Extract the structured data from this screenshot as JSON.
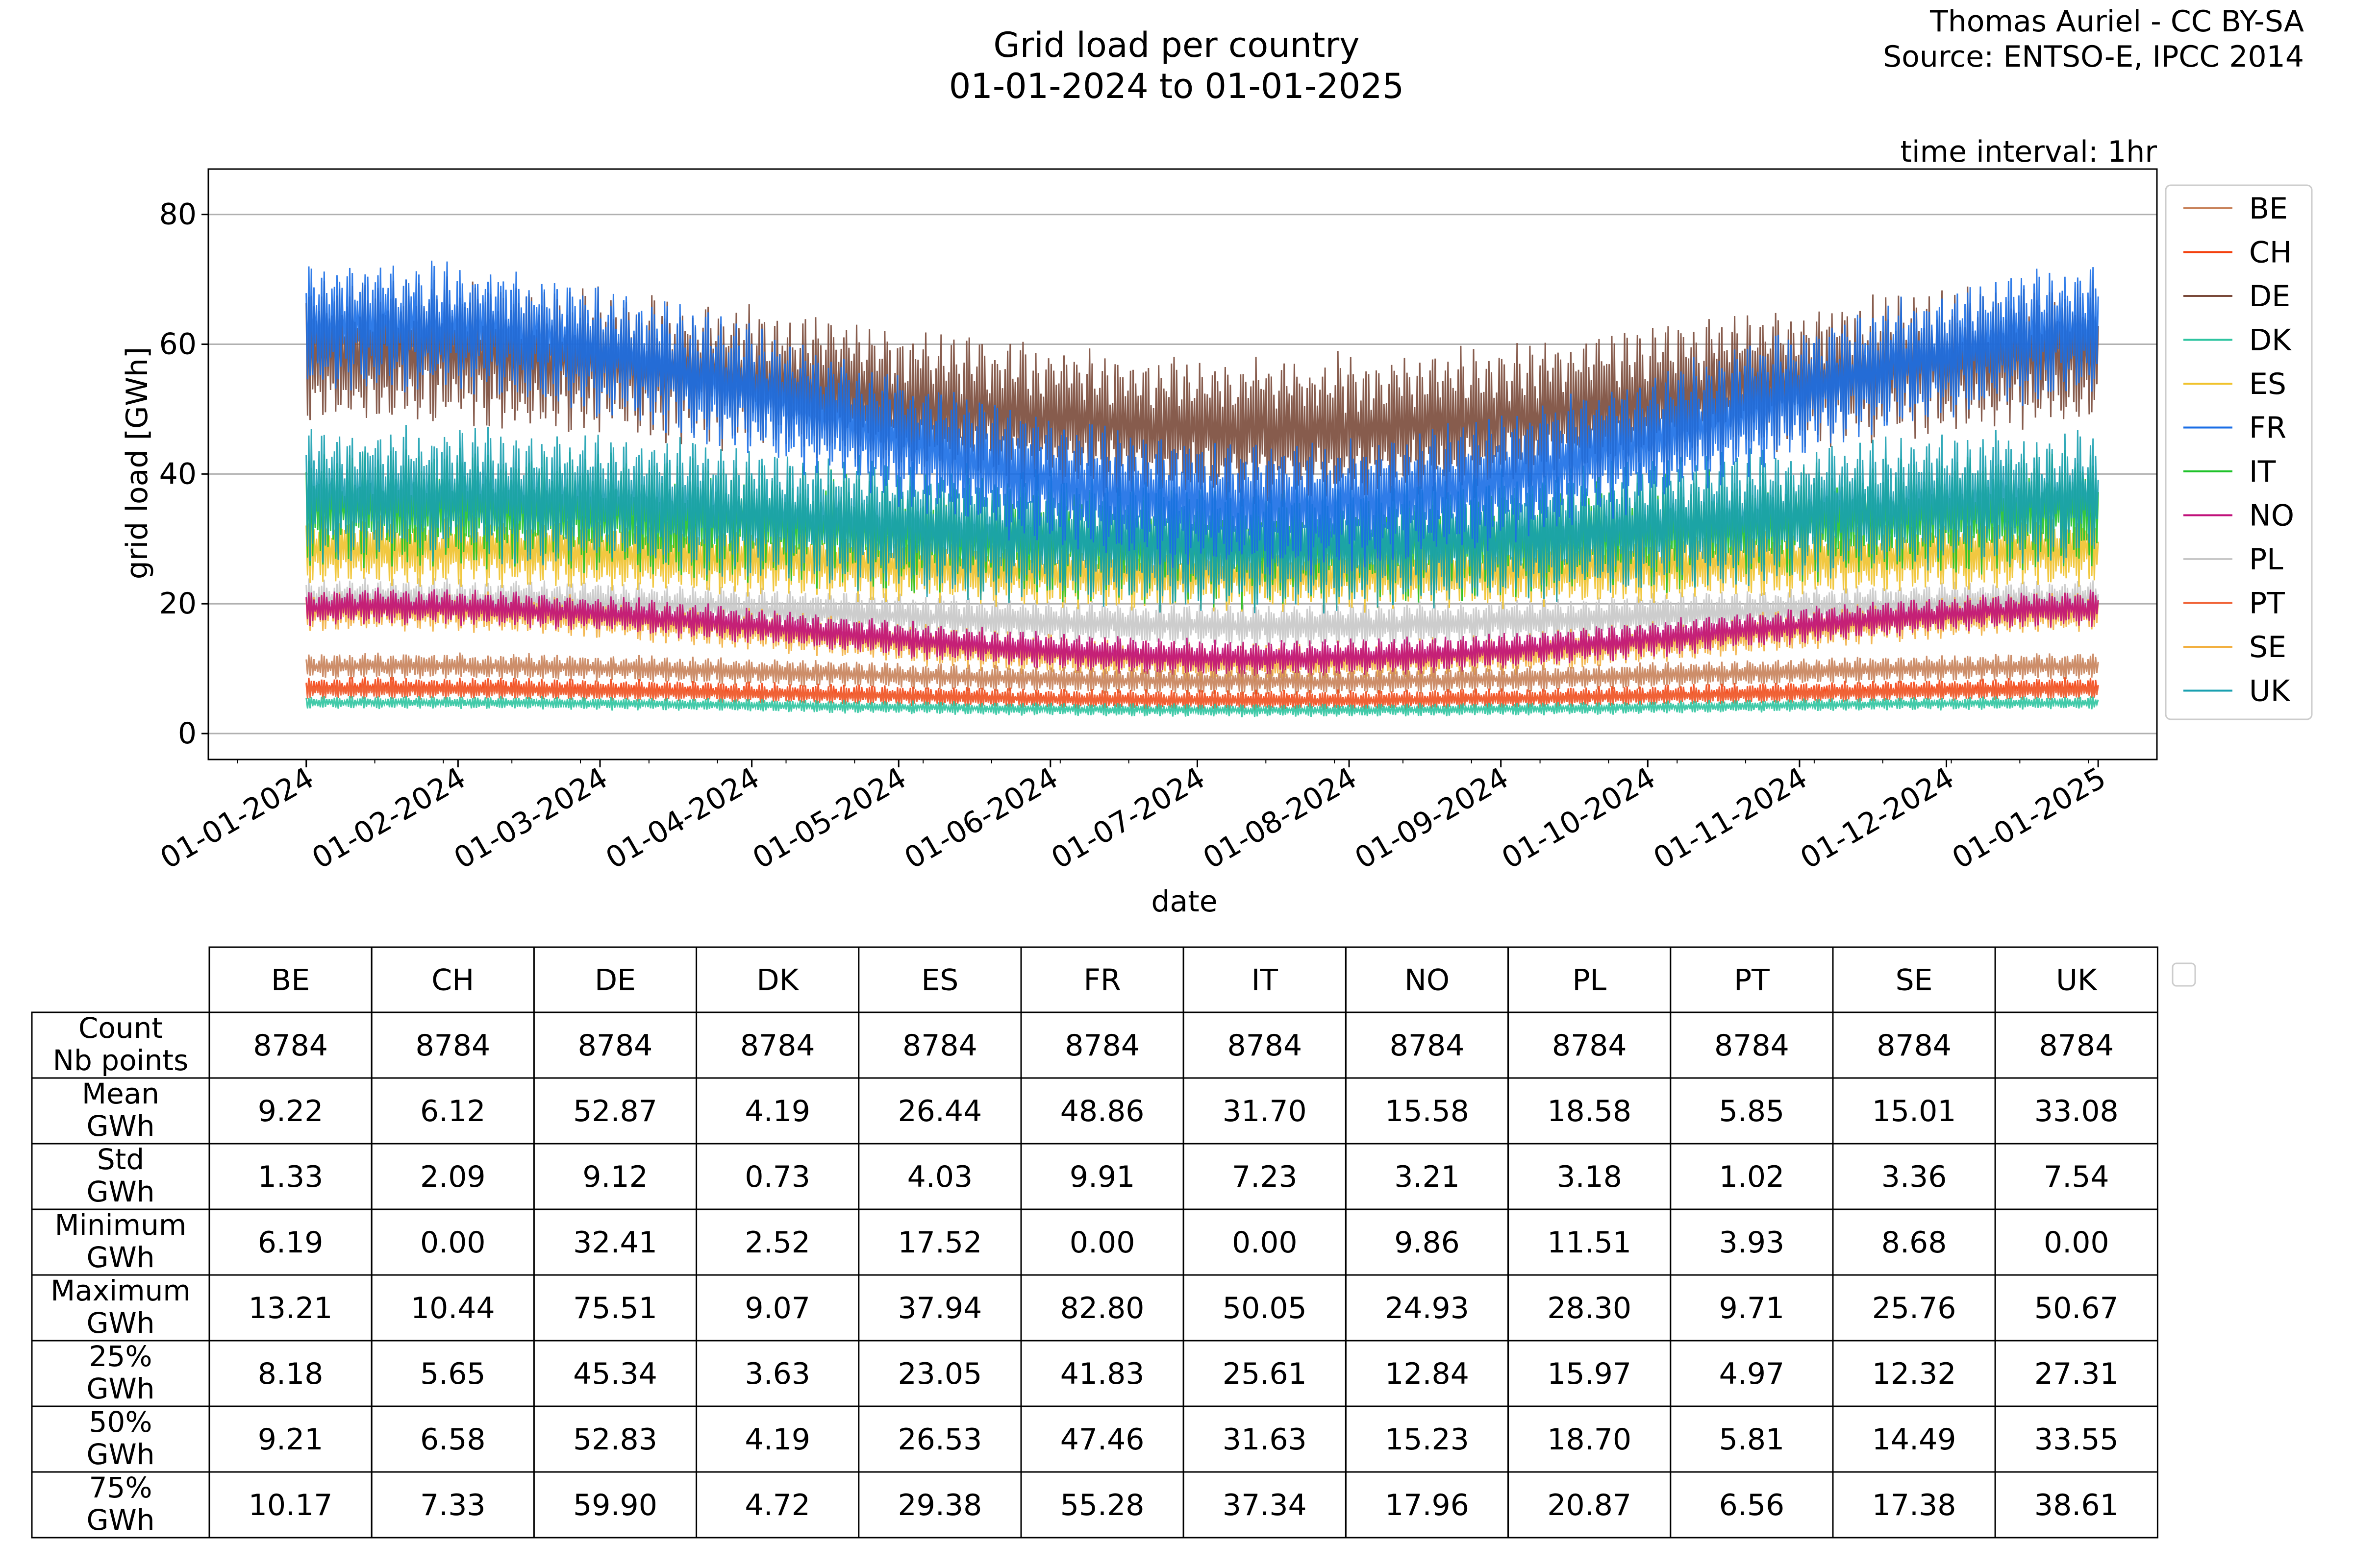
{
  "credit": {
    "author": "Thomas Auriel - CC BY-SA",
    "source": "Source: ENTSO-E, IPCC 2014"
  },
  "chart_data": {
    "type": "line",
    "title": "Grid load per country",
    "subtitle": "01-01-2024 to 01-01-2025",
    "annotation": "time interval: 1hr",
    "xlabel": "date",
    "ylabel": "grid load [GWh]",
    "ylim": [
      -4,
      87
    ],
    "yticks": [
      0,
      20,
      40,
      60,
      80
    ],
    "xlim": [
      "2023-12-12",
      "2025-01-13"
    ],
    "xticks": [
      "01-01-2024",
      "01-02-2024",
      "01-03-2024",
      "01-04-2024",
      "01-05-2024",
      "01-06-2024",
      "01-07-2024",
      "01-08-2024",
      "01-09-2024",
      "01-10-2024",
      "01-11-2024",
      "01-12-2024",
      "01-01-2025"
    ],
    "grid": "horizontal",
    "legend": "right",
    "series": [
      {
        "name": "BE",
        "color": "#c8825a",
        "mean": 9.22,
        "amp": 1.8,
        "seasonal": 1.2,
        "p25": 8.18,
        "p75": 10.17
      },
      {
        "name": "CH",
        "color": "#f4400e",
        "mean": 6.12,
        "amp": 1.4,
        "seasonal": 1.0,
        "p25": 5.65,
        "p75": 7.33
      },
      {
        "name": "DE",
        "color": "#7a4a3a",
        "mean": 52.87,
        "amp": 10.0,
        "seasonal": 6.0,
        "p25": 45.34,
        "p75": 59.9
      },
      {
        "name": "DK",
        "color": "#2ec4a0",
        "mean": 4.19,
        "amp": 0.9,
        "seasonal": 0.6,
        "p25": 3.63,
        "p75": 4.72
      },
      {
        "name": "ES",
        "color": "#f0c22c",
        "mean": 26.44,
        "amp": 5.0,
        "seasonal": 2.0,
        "p25": 23.05,
        "p75": 29.38
      },
      {
        "name": "FR",
        "color": "#1a6ee6",
        "mean": 48.86,
        "amp": 9.0,
        "seasonal": 14.0,
        "p25": 41.83,
        "p75": 55.28
      },
      {
        "name": "IT",
        "color": "#1fc22a",
        "mean": 31.7,
        "amp": 8.0,
        "seasonal": 3.0,
        "p25": 25.61,
        "p75": 37.34
      },
      {
        "name": "NO",
        "color": "#c0107a",
        "mean": 15.58,
        "amp": 2.5,
        "seasonal": 4.0,
        "p25": 12.84,
        "p75": 17.96
      },
      {
        "name": "PL",
        "color": "#c8c8c8",
        "mean": 18.58,
        "amp": 3.0,
        "seasonal": 2.0,
        "p25": 15.97,
        "p75": 20.87
      },
      {
        "name": "PT",
        "color": "#f06438",
        "mean": 5.85,
        "amp": 1.2,
        "seasonal": 0.8,
        "p25": 4.97,
        "p75": 6.56
      },
      {
        "name": "SE",
        "color": "#f2b040",
        "mean": 15.01,
        "amp": 2.8,
        "seasonal": 4.0,
        "p25": 12.32,
        "p75": 17.38
      },
      {
        "name": "UK",
        "color": "#1aa0b0",
        "mean": 33.08,
        "amp": 9.0,
        "seasonal": 4.0,
        "p25": 27.31,
        "p75": 38.61
      }
    ],
    "table": {
      "columns": [
        "BE",
        "CH",
        "DE",
        "DK",
        "ES",
        "FR",
        "IT",
        "NO",
        "PL",
        "PT",
        "SE",
        "UK"
      ],
      "rows": [
        {
          "label": [
            "Count",
            "Nb points"
          ],
          "values": [
            "8784",
            "8784",
            "8784",
            "8784",
            "8784",
            "8784",
            "8784",
            "8784",
            "8784",
            "8784",
            "8784",
            "8784"
          ]
        },
        {
          "label": [
            "Mean",
            "GWh"
          ],
          "values": [
            "9.22",
            "6.12",
            "52.87",
            "4.19",
            "26.44",
            "48.86",
            "31.70",
            "15.58",
            "18.58",
            "5.85",
            "15.01",
            "33.08"
          ]
        },
        {
          "label": [
            "Std",
            "GWh"
          ],
          "values": [
            "1.33",
            "2.09",
            "9.12",
            "0.73",
            "4.03",
            "9.91",
            "7.23",
            "3.21",
            "3.18",
            "1.02",
            "3.36",
            "7.54"
          ]
        },
        {
          "label": [
            "Minimum",
            "GWh"
          ],
          "values": [
            "6.19",
            "0.00",
            "32.41",
            "2.52",
            "17.52",
            "0.00",
            "0.00",
            "9.86",
            "11.51",
            "3.93",
            "8.68",
            "0.00"
          ]
        },
        {
          "label": [
            "Maximum",
            "GWh"
          ],
          "values": [
            "13.21",
            "10.44",
            "75.51",
            "9.07",
            "37.94",
            "82.80",
            "50.05",
            "24.93",
            "28.30",
            "9.71",
            "25.76",
            "50.67"
          ]
        },
        {
          "label": [
            "25%",
            "GWh"
          ],
          "values": [
            "8.18",
            "5.65",
            "45.34",
            "3.63",
            "23.05",
            "41.83",
            "25.61",
            "12.84",
            "15.97",
            "4.97",
            "12.32",
            "27.31"
          ]
        },
        {
          "label": [
            "50%",
            "GWh"
          ],
          "values": [
            "9.21",
            "6.58",
            "52.83",
            "4.19",
            "26.53",
            "47.46",
            "31.63",
            "15.23",
            "18.70",
            "5.81",
            "14.49",
            "33.55"
          ]
        },
        {
          "label": [
            "75%",
            "GWh"
          ],
          "values": [
            "10.17",
            "7.33",
            "59.90",
            "4.72",
            "29.38",
            "55.28",
            "37.34",
            "17.96",
            "20.87",
            "6.56",
            "17.38",
            "38.61"
          ]
        }
      ]
    }
  }
}
